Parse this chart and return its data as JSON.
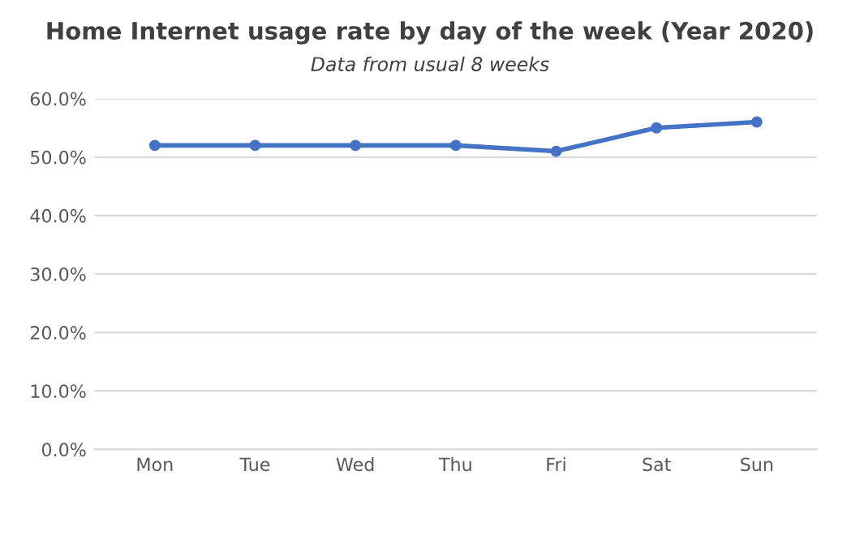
{
  "chart_data": {
    "type": "line",
    "title": "Home Internet usage rate by day of the week (Year 2020)",
    "subtitle": "Data from usual 8 weeks",
    "categories": [
      "Mon",
      "Tue",
      "Wed",
      "Thu",
      "Fri",
      "Sat",
      "Sun"
    ],
    "series": [
      {
        "color": "#4472c4",
        "values": [
          52,
          52,
          52,
          52,
          51,
          55,
          56
        ]
      }
    ],
    "ylim": [
      0,
      60
    ],
    "yticks": [
      {
        "value": 0,
        "label": "0.0%"
      },
      {
        "value": 10,
        "label": "10.0%"
      },
      {
        "value": 20,
        "label": "20.0%"
      },
      {
        "value": 30,
        "label": "30.0%"
      },
      {
        "value": 40,
        "label": "40.0%"
      },
      {
        "value": 50,
        "label": "50.0%"
      },
      {
        "value": 60,
        "label": "60.0%"
      }
    ],
    "grid": "y",
    "marker": "circle",
    "line_style": "solid"
  }
}
